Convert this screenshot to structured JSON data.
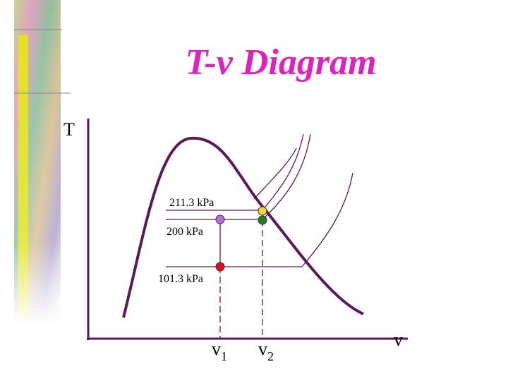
{
  "title": "T-v Diagram",
  "axes": {
    "y_label": "T",
    "x_label": "v"
  },
  "isobars": [
    {
      "label": "211.3 kPa"
    },
    {
      "label": "200 kPa"
    },
    {
      "label": "101.3 kPa"
    }
  ],
  "volumes": [
    {
      "symbol": "v",
      "subscript": "1"
    },
    {
      "symbol": "v",
      "subscript": "2"
    }
  ]
}
